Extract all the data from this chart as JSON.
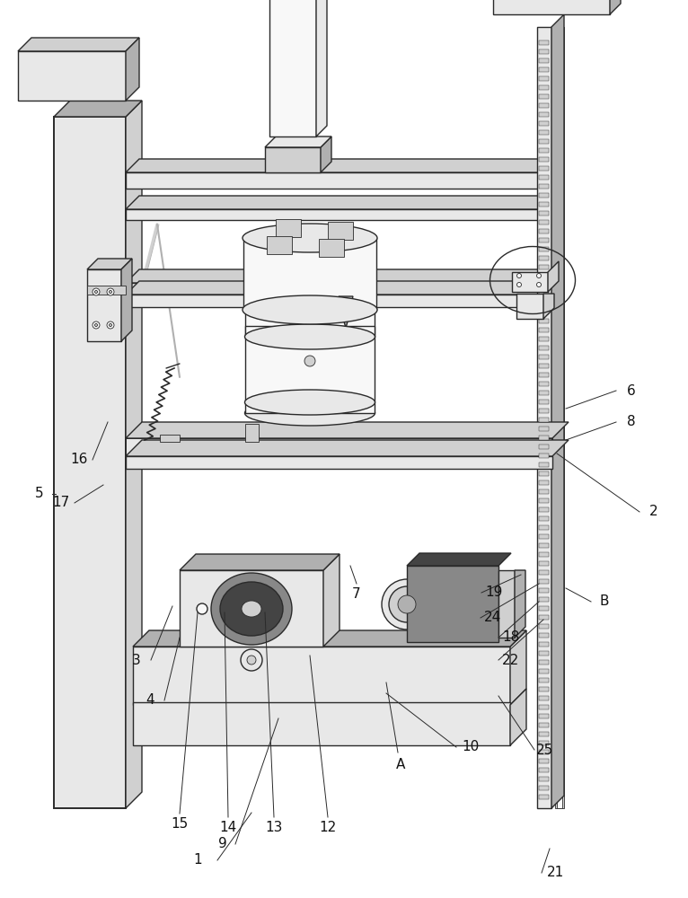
{
  "bg_color": "#ffffff",
  "lc": "#2a2a2a",
  "lc_light": "#666666",
  "face_white": "#f8f8f8",
  "face_light": "#e8e8e8",
  "face_mid": "#d0d0d0",
  "face_dark": "#b0b0b0",
  "face_darker": "#888888",
  "face_black": "#444444",
  "lw_main": 1.0,
  "lw_thick": 1.4,
  "lw_thin": 0.6,
  "label_fs": 11,
  "label_color": "#111111"
}
